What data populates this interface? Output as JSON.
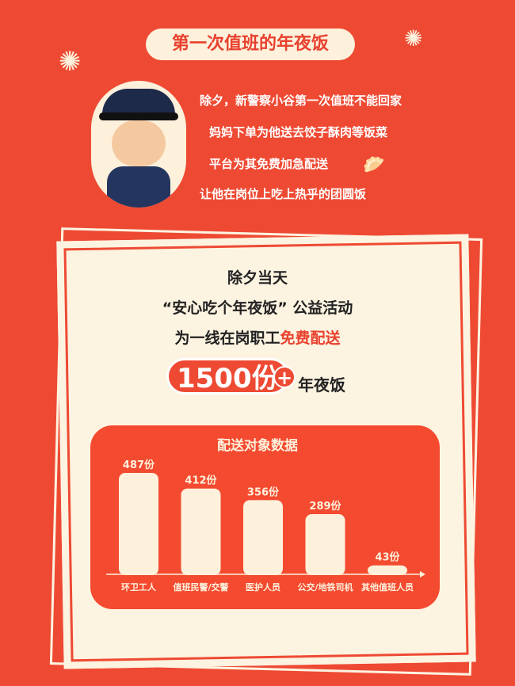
{
  "header": {
    "title": "第一次值班的年夜饭"
  },
  "story": {
    "lines": [
      "除夕，新警察小谷第一次值班不能回家",
      "妈妈下单为他送去饺子酥肉等饭菜",
      "平台为其免费加急配送",
      "让他在岗位上吃上热乎的团圆饭"
    ]
  },
  "event": {
    "line1": "除夕当天",
    "line2": "“安心吃个年夜饭” 公益活动",
    "line3_prefix": "为一线在岗职工",
    "line3_highlight": "免费配送",
    "big_number": "1500份",
    "plus": "+",
    "suffix": "年夜饭"
  },
  "colors": {
    "background": "#ee4a33",
    "cream": "#fdf3e1",
    "accent": "#e8412e"
  },
  "chart_data": {
    "type": "bar",
    "title": "配送对象数据",
    "categories": [
      "环卫工人",
      "值班民警/交警",
      "医护人员",
      "公交/地铁司机",
      "其他值班人员"
    ],
    "values": [
      487,
      412,
      356,
      289,
      43
    ],
    "data_labels": [
      "487份",
      "412份",
      "356份",
      "289份",
      "43份"
    ],
    "ylim": [
      0,
      487
    ],
    "grid": false
  }
}
